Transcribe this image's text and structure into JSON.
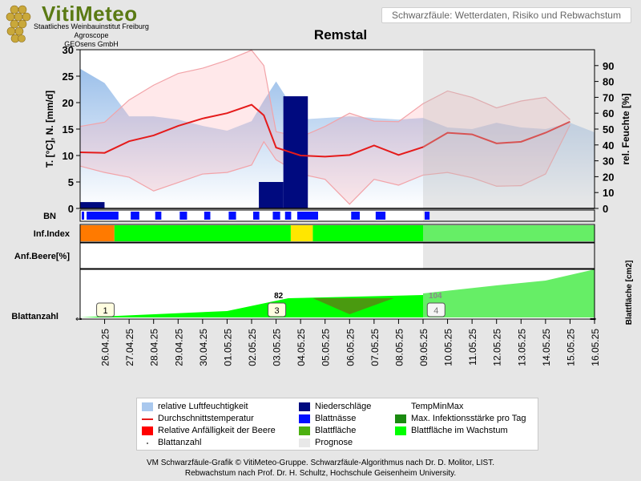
{
  "header": {
    "logo_title": "VitiMeteo",
    "logo_lines": [
      "Staatliches Weinbauinstitut Freiburg",
      "Agroscope",
      "GEOsens GmbH"
    ],
    "subtitle": "Schwarzfäule: Wetterdaten, Risiko und Rebwachstum",
    "title": "Remstal"
  },
  "chart_data": {
    "type": "line",
    "title": "Remstal",
    "x_dates": [
      "26.04.25",
      "27.04.25",
      "28.04.25",
      "29.04.25",
      "30.04.25",
      "01.05.25",
      "02.05.25",
      "03.05.25",
      "04.05.25",
      "05.05.25",
      "06.05.25",
      "07.05.25",
      "08.05.25",
      "09.05.25",
      "10.05.25",
      "11.05.25",
      "12.05.25",
      "13.05.25",
      "14.05.25",
      "15.05.25",
      "16.05.25"
    ],
    "x_points": [
      0,
      1,
      2,
      3,
      4,
      5,
      6,
      7,
      7.5,
      8,
      9,
      10,
      11,
      12,
      13,
      14,
      15,
      16,
      17,
      18,
      19,
      20,
      21
    ],
    "y_left": {
      "label": "T. [°C], N. [mm/d]",
      "lim": [
        0,
        30
      ],
      "ticks": [
        0,
        5,
        10,
        15,
        20,
        25,
        30
      ]
    },
    "y_right": {
      "label": "rel. Feuchte [%]",
      "lim": [
        0,
        100
      ],
      "ticks": [
        0,
        10,
        20,
        30,
        40,
        50,
        60,
        70,
        80,
        90
      ]
    },
    "forecast_start_index": 14,
    "mean_temperature": [
      10.6,
      10.5,
      12.7,
      13.8,
      15.6,
      17.0,
      18.0,
      19.6,
      17.6,
      11.5,
      10.0,
      9.8,
      10.1,
      11.9,
      10.1,
      11.6,
      14.3,
      14.0,
      12.3,
      12.6,
      14.3,
      16.4
    ],
    "temp_max": [
      15.5,
      16.3,
      20.5,
      23.3,
      25.5,
      26.5,
      28.0,
      29.9,
      27.0,
      14.5,
      13.5,
      15.5,
      18.0,
      16.5,
      16.4,
      19.8,
      22.2,
      21.0,
      19.0,
      20.3,
      21.0,
      16.8
    ],
    "temp_min": [
      8.0,
      6.8,
      5.9,
      3.3,
      4.9,
      6.5,
      6.8,
      8.2,
      12.6,
      9.2,
      6.5,
      5.5,
      0.8,
      5.5,
      4.4,
      6.3,
      6.8,
      5.8,
      4.2,
      4.3,
      6.5,
      15.8
    ],
    "rel_humidity": [
      88,
      79,
      58,
      58,
      56,
      52,
      49,
      55,
      68,
      80,
      56,
      57,
      58,
      57,
      56,
      57,
      51,
      50,
      54,
      51,
      50,
      54,
      48
    ],
    "precipitation": [
      {
        "x": 0,
        "value": 1.2
      },
      {
        "x": 7.3,
        "value": 5
      },
      {
        "x": 8.3,
        "value": 21.2
      }
    ],
    "leaf_wetness_segments": [
      [
        0,
        0.1
      ],
      [
        0.2,
        1.5
      ],
      [
        2.0,
        2.35
      ],
      [
        3.0,
        3.25
      ],
      [
        4.0,
        4.3
      ],
      [
        5.0,
        5.25
      ],
      [
        6.0,
        6.3
      ],
      [
        7.0,
        7.25
      ],
      [
        7.8,
        8.1
      ],
      [
        8.3,
        8.55
      ],
      [
        8.8,
        9.65
      ],
      [
        11.0,
        11.35
      ],
      [
        12.0,
        12.4
      ],
      [
        14.0,
        14.2
      ]
    ],
    "infection_index": [
      {
        "from": 0,
        "to": 1.4,
        "color": "#ff7a00"
      },
      {
        "from": 1.4,
        "to": 8.6,
        "color": "#00ff00"
      },
      {
        "from": 8.6,
        "to": 9.5,
        "color": "#ffe600"
      },
      {
        "from": 9.5,
        "to": 14,
        "color": "#00ff00"
      },
      {
        "from": 14,
        "to": 21,
        "color": "#66ee66"
      }
    ],
    "leaf_area_labels": [
      {
        "x": 8.1,
        "text": "82"
      },
      {
        "x": 14.5,
        "text": "104"
      }
    ],
    "leaf_count_markers": [
      {
        "x": 1,
        "text": "1"
      },
      {
        "x": 8,
        "text": "3"
      },
      {
        "x": 14.5,
        "text": "4"
      }
    ],
    "row_labels": {
      "bn": "BN",
      "inf": "Inf.Index",
      "anf": "Anf.Beere[%]",
      "blatt": "Blattanzahl",
      "blattflaeche": "Blattfläche [cm2]"
    }
  },
  "legend": [
    {
      "label": "relative Luftfeuchtigkeit",
      "color": "#a9c8ee",
      "type": "box"
    },
    {
      "label": "Niederschläge",
      "color": "#000a7f",
      "type": "box"
    },
    {
      "label": "TempMinMax",
      "color": "#ffffff",
      "type": "none"
    },
    {
      "label": "Durchschnittstemperatur",
      "color": "#e51b1b",
      "type": "line"
    },
    {
      "label": "Blattnässe",
      "color": "#0010ff",
      "type": "box"
    },
    {
      "label": "Max. Infektionsstärke pro Tag",
      "color": "#1a8a10",
      "type": "box"
    },
    {
      "label": "Relative Anfälligkeit der Beere",
      "color": "#ff0000",
      "type": "box"
    },
    {
      "label": "Blattfläche",
      "color": "#4cb010",
      "type": "box"
    },
    {
      "label": "Blattfläche im Wachstum",
      "color": "#00ff00",
      "type": "box"
    },
    {
      "label": "Blattanzahl",
      "color": "#777777",
      "type": "dot"
    },
    {
      "label": "Prognose",
      "color": "#e8e8e8",
      "type": "box"
    }
  ],
  "footer": [
    "VM Schwarzfäule-Grafik © VitiMeteo-Gruppe. Schwarzfäule-Algorithmus nach Dr. D. Molitor, LIST.",
    "Rebwachstum nach Prof. Dr. H. Schultz, Hochschule Geisenheim University."
  ]
}
